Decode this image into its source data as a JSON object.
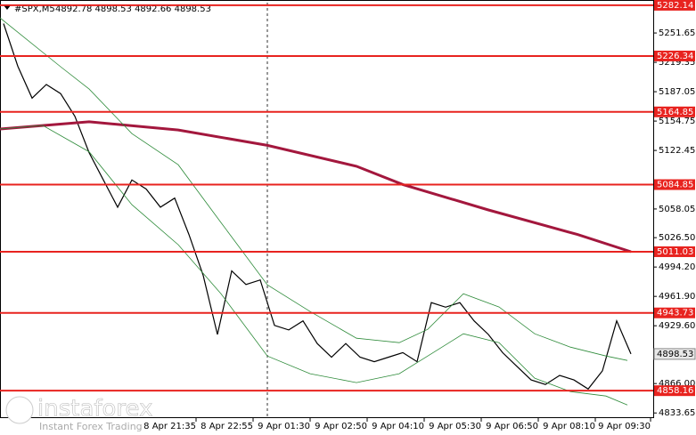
{
  "chart_data": {
    "type": "line",
    "title": "#SPX,M5",
    "subtitle": "4892.78 4898.53 4892.66 4898.53",
    "xlim": [
      -1,
      182.25
    ],
    "ylim": [
      4828,
      5285
    ],
    "xticks": [
      {
        "value": 54,
        "label": "8 Apr 21:35"
      },
      {
        "value": 70,
        "label": "8 Apr 22:55"
      },
      {
        "value": 86,
        "label": "9 Apr 01:30"
      },
      {
        "value": 102,
        "label": "9 Apr 02:50"
      },
      {
        "value": 118,
        "label": "9 Apr 04:10"
      },
      {
        "value": 134,
        "label": "9 Apr 05:30"
      },
      {
        "value": 150,
        "label": "9 Apr 06:50"
      },
      {
        "value": 166,
        "label": "9 Apr 08:10"
      },
      {
        "value": 181.5,
        "label": "9 Apr 09:30"
      }
    ],
    "yticks": [
      5251.65,
      5219.35,
      5187.05,
      5154.75,
      5122.45,
      5058.05,
      {
        "value": 5026.5,
        "label": "5026.50"
      },
      {
        "value": 4994.2,
        "label": "4994.20"
      },
      {
        "value": 4961.9,
        "label": "4961.90"
      },
      {
        "value": 4929.6,
        "label": "4929.60"
      },
      {
        "value": 4866,
        "label": "4866.00"
      },
      4833.65
    ],
    "levels": [
      5282.14,
      5226.34,
      5164.85,
      5084.85,
      5011.03,
      4943.73,
      4858.16
    ],
    "level_color": "#e8231f",
    "current_price": 4898.53,
    "separator": 74,
    "series": [
      {
        "color": "#000000",
        "width": 1.2,
        "x": [
          0,
          4,
          8,
          12,
          16,
          20,
          24,
          28,
          32,
          36,
          40,
          44,
          48,
          52,
          56,
          60,
          64,
          68,
          72,
          76,
          80,
          84,
          88,
          92,
          96,
          100,
          104,
          108,
          112,
          116,
          120,
          124,
          128,
          132,
          136,
          140,
          144,
          148,
          152,
          156,
          160,
          164,
          168,
          172,
          176
        ],
        "values": [
          5262,
          5215,
          5180,
          5195,
          5185,
          5160,
          5120,
          5090,
          5060,
          5090,
          5080,
          5060,
          5070,
          5030,
          4985,
          4920,
          4990,
          4975,
          4980,
          4930,
          4925,
          4935,
          4910,
          4895,
          4910,
          4895,
          4890,
          4895,
          4900,
          4890,
          4955,
          4950,
          4955,
          4935,
          4920,
          4900,
          4885,
          4870,
          4865,
          4875,
          4870,
          4860,
          4880,
          4935,
          4898.53
        ]
      },
      {
        "color": "#a3173d",
        "width": 3,
        "x": [
          -1,
          24,
          49,
          74,
          99,
          112,
          136,
          161,
          176
        ],
        "values": [
          5146,
          5154,
          5145,
          5128,
          5105,
          5085,
          5057,
          5030,
          5011
        ]
      },
      {
        "color": "#2e8b3a",
        "width": 0.8,
        "x": [
          -1,
          16,
          24,
          36,
          49,
          61,
          74,
          86,
          99,
          111,
          119,
          129,
          139,
          149,
          159,
          169,
          175
        ],
        "values": [
          5268.3,
          5214.5,
          5190,
          5141,
          5106.7,
          5043.1,
          4974.6,
          4945.2,
          4915.9,
          4911,
          4925.7,
          4964.8,
          4950.2,
          4920.8,
          4906.1,
          4896.3,
          4891.4
        ]
      },
      {
        "color": "#2e8b3a",
        "width": 0.8,
        "x": [
          -1,
          11,
          24,
          36,
          49,
          61,
          74,
          86,
          99,
          111,
          119,
          129,
          139,
          149,
          159,
          169,
          175
        ],
        "values": [
          5146,
          5150,
          5121,
          5062.8,
          5018.7,
          4964.8,
          4896.3,
          4876.8,
          4867,
          4876.8,
          4896.3,
          4920.8,
          4911,
          4871.9,
          4857.2,
          4852.3,
          4842.5
        ]
      }
    ]
  },
  "watermark": {
    "brand": "instaforex",
    "tagline": "Instant Forex Trading"
  }
}
